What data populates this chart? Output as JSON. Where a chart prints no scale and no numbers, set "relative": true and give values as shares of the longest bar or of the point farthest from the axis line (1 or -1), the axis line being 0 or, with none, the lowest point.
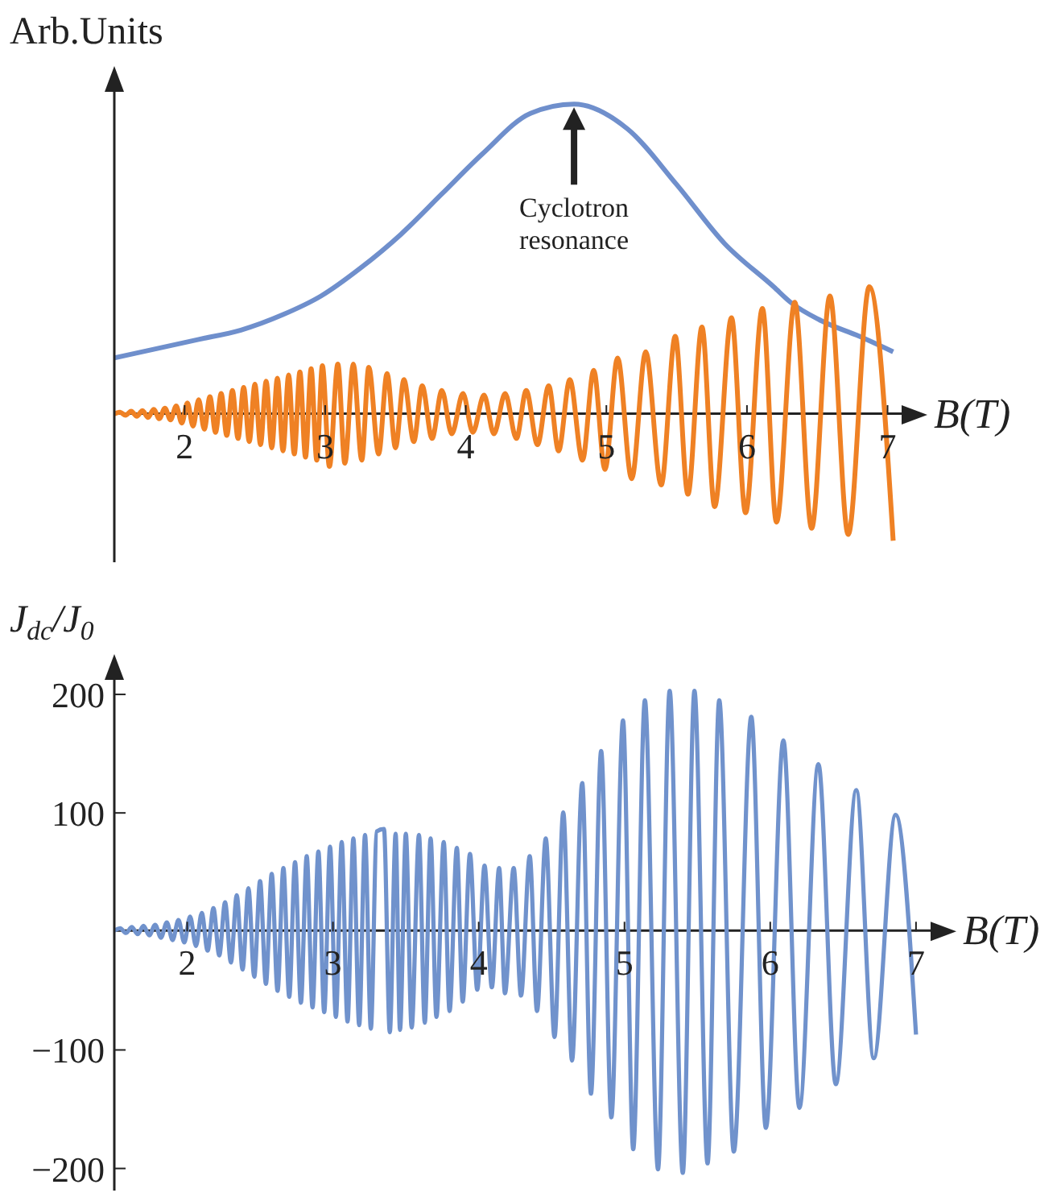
{
  "chart_data": [
    {
      "type": "line",
      "relative": true,
      "ylabel": "Arb.Units",
      "xlabel": "B(T)",
      "xlim": [
        1.5,
        7.1
      ],
      "xticks": [
        2,
        3,
        4,
        5,
        6,
        7
      ],
      "marker": "none",
      "line_style": "solid",
      "annotations": [
        "Cyclotron resonance"
      ],
      "series": [
        {
          "color": "#6f8fcc",
          "x": [
            1.5,
            1.8,
            2.1,
            2.4,
            2.7,
            2.97,
            3.25,
            3.54,
            3.83,
            4.12,
            4.46,
            4.77,
            5.15,
            5.5,
            5.84,
            6.19,
            6.31,
            6.53,
            6.8,
            7.04
          ],
          "values": [
            0.18,
            0.21,
            0.24,
            0.27,
            0.32,
            0.38,
            0.47,
            0.58,
            0.71,
            0.84,
            0.97,
            1.0,
            0.92,
            0.74,
            0.55,
            0.41,
            0.36,
            0.3,
            0.25,
            0.2
          ]
        },
        {
          "color": "#ef8124",
          "x": [
            1.5,
            1.54,
            1.58,
            1.62,
            1.66,
            1.7,
            1.74,
            1.78,
            1.82,
            1.86,
            1.9,
            1.94,
            1.98,
            2.02,
            2.06,
            2.1,
            2.14,
            2.18,
            2.22,
            2.26,
            2.3,
            2.34,
            2.38,
            2.42,
            2.46,
            2.5,
            2.54,
            2.58,
            2.62,
            2.66,
            2.7,
            2.74,
            2.78,
            2.82,
            2.86,
            2.9,
            2.94,
            2.98,
            3.03,
            3.09,
            3.14,
            3.2,
            3.26,
            3.31,
            3.38,
            3.44,
            3.5,
            3.56,
            3.63,
            3.69,
            3.76,
            3.83,
            3.9,
            3.98,
            4.05,
            4.13,
            4.2,
            4.28,
            4.36,
            4.43,
            4.51,
            4.59,
            4.66,
            4.74,
            4.83,
            4.91,
            4.99,
            5.08,
            5.18,
            5.28,
            5.39,
            5.49,
            5.58,
            5.68,
            5.77,
            5.89,
            5.99,
            6.11,
            6.21,
            6.34,
            6.46,
            6.59,
            6.72,
            6.87,
            7.04
          ],
          "values": [
            0,
            0.005,
            -0.005,
            0.008,
            -0.008,
            0.01,
            -0.012,
            0.014,
            -0.016,
            0.018,
            -0.02,
            0.025,
            -0.03,
            0.035,
            -0.04,
            0.045,
            -0.05,
            0.055,
            -0.06,
            0.065,
            -0.07,
            0.075,
            -0.08,
            0.085,
            -0.09,
            0.095,
            -0.1,
            0.105,
            -0.11,
            0.115,
            -0.12,
            0.125,
            -0.13,
            0.135,
            -0.14,
            0.145,
            -0.15,
            0.155,
            -0.17,
            0.16,
            -0.16,
            0.16,
            -0.15,
            0.15,
            -0.13,
            0.13,
            -0.11,
            0.11,
            -0.09,
            0.09,
            -0.08,
            0.075,
            -0.065,
            0.065,
            -0.06,
            0.06,
            -0.065,
            0.065,
            -0.08,
            0.075,
            -0.1,
            0.09,
            -0.12,
            0.11,
            -0.15,
            0.14,
            -0.18,
            0.18,
            -0.21,
            0.2,
            -0.23,
            0.25,
            -0.26,
            0.28,
            -0.3,
            0.31,
            -0.32,
            0.34,
            -0.35,
            0.36,
            -0.37,
            0.38,
            -0.39,
            0.41,
            -0.41
          ]
        }
      ]
    },
    {
      "type": "line",
      "ylabel": "J$_{dc}$/J$_{0}$",
      "xlabel": "B(T)",
      "xlim": [
        1.5,
        7.1
      ],
      "xticks": [
        2,
        3,
        4,
        5,
        6,
        7
      ],
      "ylim": [
        -220,
        215
      ],
      "yticks": [
        -200,
        -100,
        100,
        200
      ],
      "marker": "none",
      "line_style": "solid",
      "series": [
        {
          "color": "#7092cc",
          "x": [
            1.5,
            1.54,
            1.58,
            1.62,
            1.66,
            1.7,
            1.74,
            1.78,
            1.82,
            1.86,
            1.9,
            1.94,
            1.98,
            2.02,
            2.06,
            2.1,
            2.14,
            2.18,
            2.22,
            2.26,
            2.3,
            2.34,
            2.38,
            2.42,
            2.46,
            2.5,
            2.54,
            2.58,
            2.62,
            2.66,
            2.7,
            2.74,
            2.78,
            2.82,
            2.86,
            2.9,
            2.94,
            2.98,
            3.02,
            3.06,
            3.1,
            3.14,
            3.18,
            3.22,
            3.26,
            3.3,
            3.35,
            3.39,
            3.43,
            3.46,
            3.5,
            3.54,
            3.59,
            3.63,
            3.67,
            3.71,
            3.76,
            3.8,
            3.85,
            3.89,
            3.94,
            3.99,
            4.04,
            4.09,
            4.14,
            4.18,
            4.24,
            4.29,
            4.35,
            4.4,
            4.46,
            4.52,
            4.58,
            4.64,
            4.71,
            4.77,
            4.84,
            4.91,
            4.99,
            5.06,
            5.14,
            5.23,
            5.31,
            5.4,
            5.48,
            5.57,
            5.65,
            5.75,
            5.87,
            5.97,
            6.09,
            6.2,
            6.33,
            6.45,
            6.59,
            6.71,
            6.86,
            7.0
          ],
          "values": [
            0,
            2,
            -2,
            3,
            -3,
            4,
            -4,
            5,
            -6,
            7,
            -8,
            9,
            -10,
            12,
            -13,
            15,
            -17,
            19,
            -21,
            24,
            -27,
            30,
            -33,
            36,
            -39,
            42,
            -45,
            48,
            -51,
            53,
            -56,
            58,
            -61,
            63,
            -65,
            67,
            -69,
            71,
            -73,
            75,
            -77,
            78,
            -80,
            81,
            -83,
            84,
            86,
            -86,
            82,
            -84,
            82,
            -82,
            81,
            -78,
            78,
            -73,
            75,
            -68,
            70,
            -60,
            65,
            -50,
            55,
            -48,
            53,
            -53,
            53,
            -55,
            63,
            -68,
            78,
            -90,
            100,
            -110,
            125,
            -138,
            152,
            -158,
            178,
            -185,
            195,
            -202,
            203,
            -205,
            203,
            -197,
            195,
            -187,
            181,
            -167,
            161,
            -150,
            141,
            -130,
            119,
            -108,
            98,
            -88
          ]
        }
      ]
    }
  ]
}
